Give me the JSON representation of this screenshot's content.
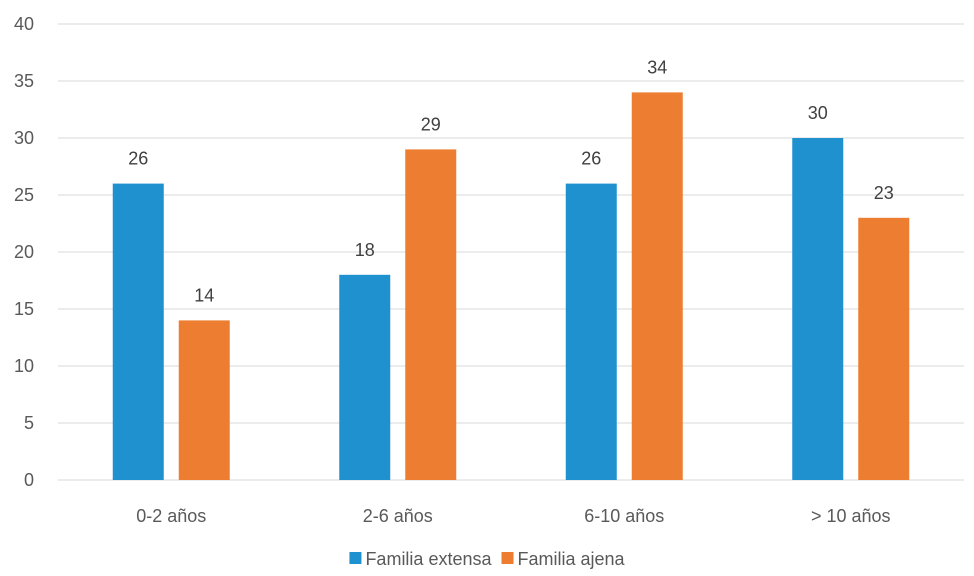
{
  "chart_data": {
    "type": "bar",
    "title": "",
    "xlabel": "",
    "ylabel": "",
    "categories": [
      "0-2 años",
      "2-6 años",
      "6-10 años",
      "> 10 años"
    ],
    "series": [
      {
        "name": "Familia extensa",
        "values": [
          26,
          18,
          26,
          30
        ],
        "color": "#1f91cf"
      },
      {
        "name": "Familia ajena",
        "values": [
          14,
          29,
          34,
          23
        ],
        "color": "#ed7d31"
      }
    ],
    "ylim": [
      0,
      40
    ],
    "yticks": [
      0,
      5,
      10,
      15,
      20,
      25,
      30,
      35,
      40
    ],
    "grid": true,
    "legend_position": "bottom"
  }
}
